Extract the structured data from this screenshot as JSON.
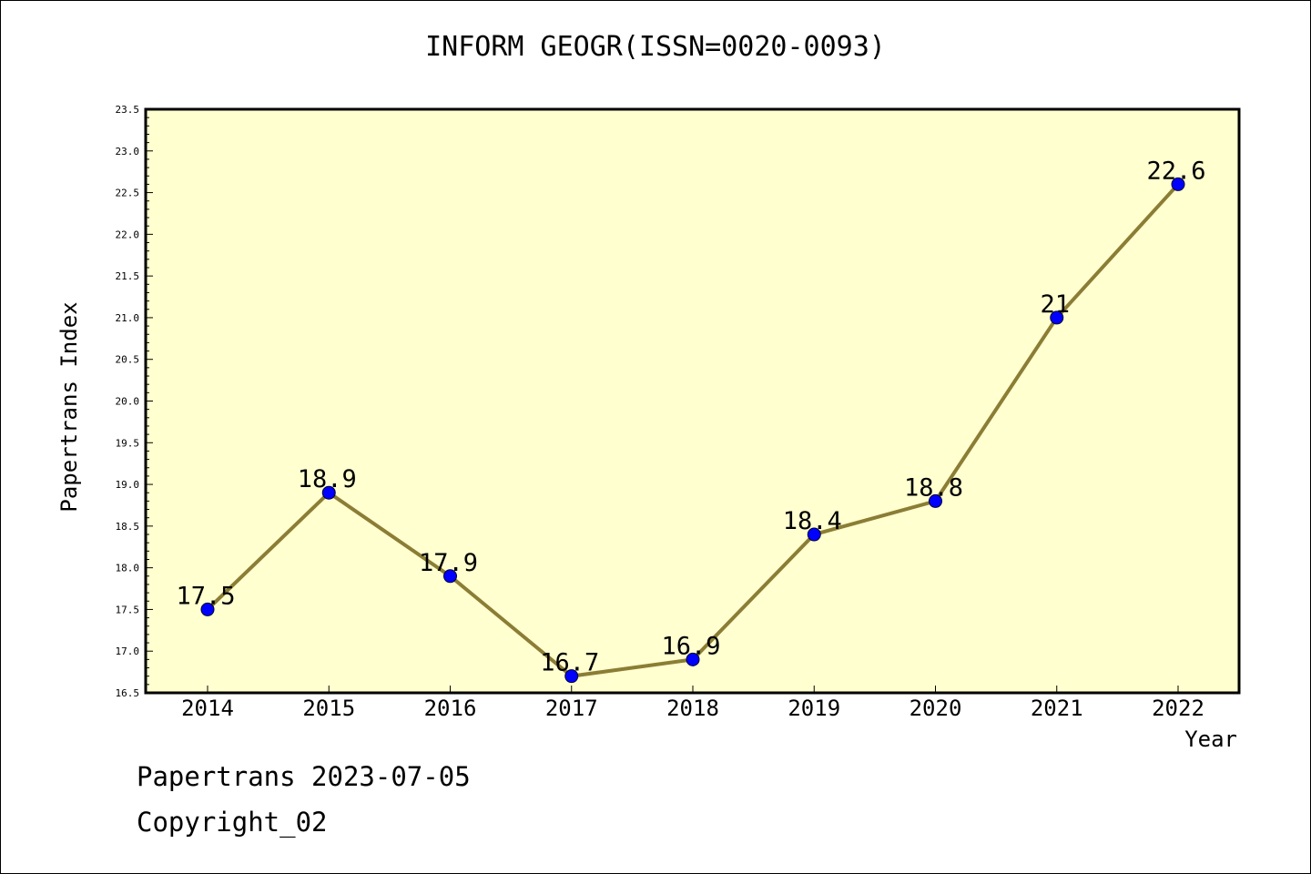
{
  "chart_data": {
    "type": "line",
    "title": "INFORM GEOGR(ISSN=0020-0093)",
    "xlabel": "Year",
    "ylabel": "Papertrans Index",
    "categories": [
      "2014",
      "2015",
      "2016",
      "2017",
      "2018",
      "2019",
      "2020",
      "2021",
      "2022"
    ],
    "values": [
      17.5,
      18.9,
      17.9,
      16.7,
      16.9,
      18.4,
      18.8,
      21,
      22.6
    ],
    "data_labels": [
      "17.5",
      "18.9",
      "17.9",
      "16.7",
      "16.9",
      "18.4",
      "18.8",
      "21",
      "22.6"
    ],
    "ylim": [
      16.5,
      23.5
    ],
    "yticks": [
      "16.5",
      "17.0",
      "17.5",
      "18.0",
      "18.5",
      "19.0",
      "19.5",
      "20.0",
      "20.5",
      "21.0",
      "21.5",
      "22.0",
      "22.5",
      "23.0",
      "23.5"
    ],
    "colors": {
      "plot_bg": "#ffffd0",
      "line": "#8b7d35",
      "marker": "#0000ff"
    },
    "grid": false
  },
  "footer": {
    "line1": "Papertrans 2023-07-05",
    "line2": "Copyright_02"
  }
}
